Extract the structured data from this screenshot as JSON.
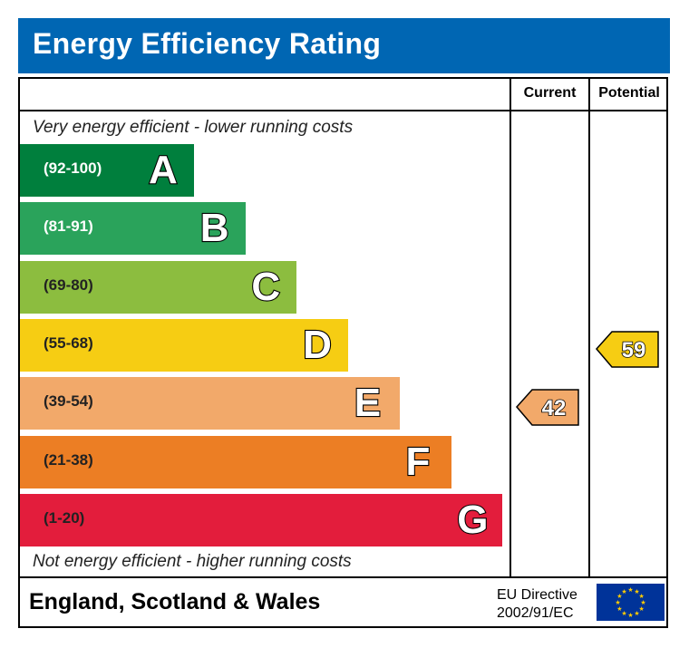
{
  "title": "Energy Efficiency Rating",
  "columns": {
    "current": "Current",
    "potential": "Potential"
  },
  "captions": {
    "top": "Very energy efficient - lower running costs",
    "bottom": "Not energy efficient - higher running costs"
  },
  "footer": {
    "region": "England, Scotland & Wales",
    "directive_line1": "EU Directive",
    "directive_line2": "2002/91/EC"
  },
  "chart_data": {
    "type": "bar",
    "bands": [
      {
        "letter": "A",
        "range": "(92-100)",
        "min": 92,
        "max": 100,
        "color": "#007f3d",
        "text_color": "#ffffff"
      },
      {
        "letter": "B",
        "range": "(81-91)",
        "min": 81,
        "max": 91,
        "color": "#2aa35b",
        "text_color": "#ffffff"
      },
      {
        "letter": "C",
        "range": "(69-80)",
        "min": 69,
        "max": 80,
        "color": "#8cbd3f",
        "text_color": "#222222"
      },
      {
        "letter": "D",
        "range": "(55-68)",
        "min": 55,
        "max": 68,
        "color": "#f6cd13",
        "text_color": "#222222"
      },
      {
        "letter": "E",
        "range": "(39-54)",
        "min": 39,
        "max": 54,
        "color": "#f2a96a",
        "text_color": "#222222"
      },
      {
        "letter": "F",
        "range": "(21-38)",
        "min": 21,
        "max": 38,
        "color": "#ec7e24",
        "text_color": "#222222"
      },
      {
        "letter": "G",
        "range": "(1-20)",
        "min": 1,
        "max": 20,
        "color": "#e31d3c",
        "text_color": "#222222"
      }
    ],
    "current": {
      "value": 42,
      "band": "E",
      "color": "#f2a96a"
    },
    "potential": {
      "value": 59,
      "band": "D",
      "color": "#f6cd13"
    }
  },
  "colors": {
    "title_bar": "#0066b3",
    "eu_flag": "#003399",
    "eu_stars": "#ffcc00"
  }
}
